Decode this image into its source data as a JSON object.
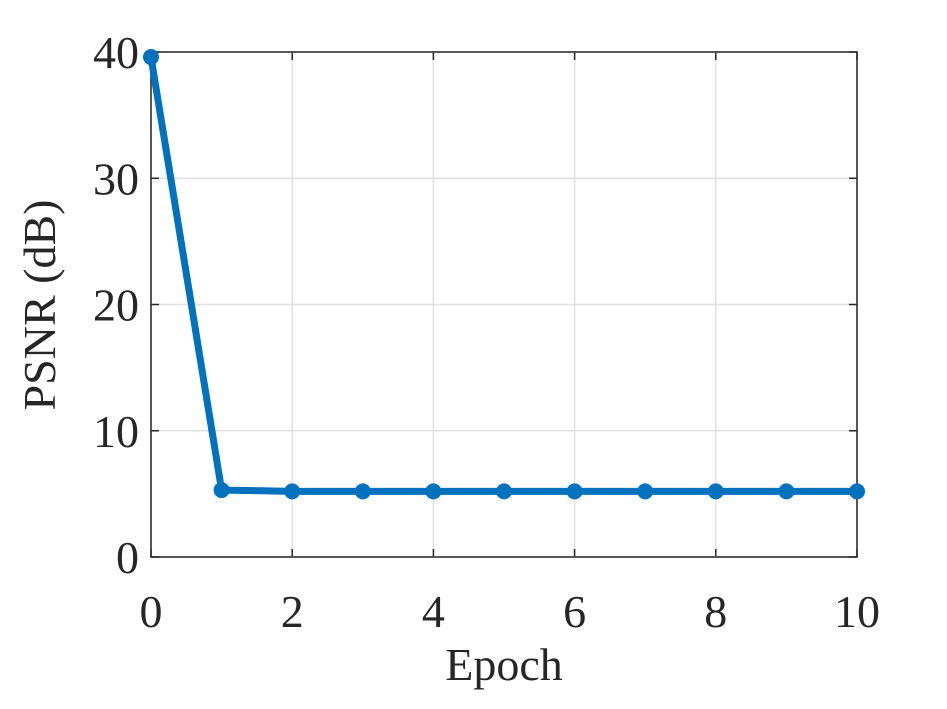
{
  "chart_data": {
    "type": "line",
    "x_label": "Epoch",
    "y_label": "PSNR (dB)",
    "x": [
      0,
      1,
      2,
      3,
      4,
      5,
      6,
      7,
      8,
      9,
      10
    ],
    "series": [
      {
        "color": "#0072bd",
        "values": [
          39.6,
          5.3,
          5.2,
          5.2,
          5.2,
          5.2,
          5.2,
          5.2,
          5.2,
          5.2,
          5.2
        ]
      }
    ],
    "xlim": [
      0,
      10
    ],
    "xticks": [
      0,
      2,
      4,
      6,
      8,
      10
    ],
    "ylim": [
      0,
      40
    ],
    "yticks": [
      0,
      10,
      20,
      30,
      40
    ],
    "grid": true
  }
}
